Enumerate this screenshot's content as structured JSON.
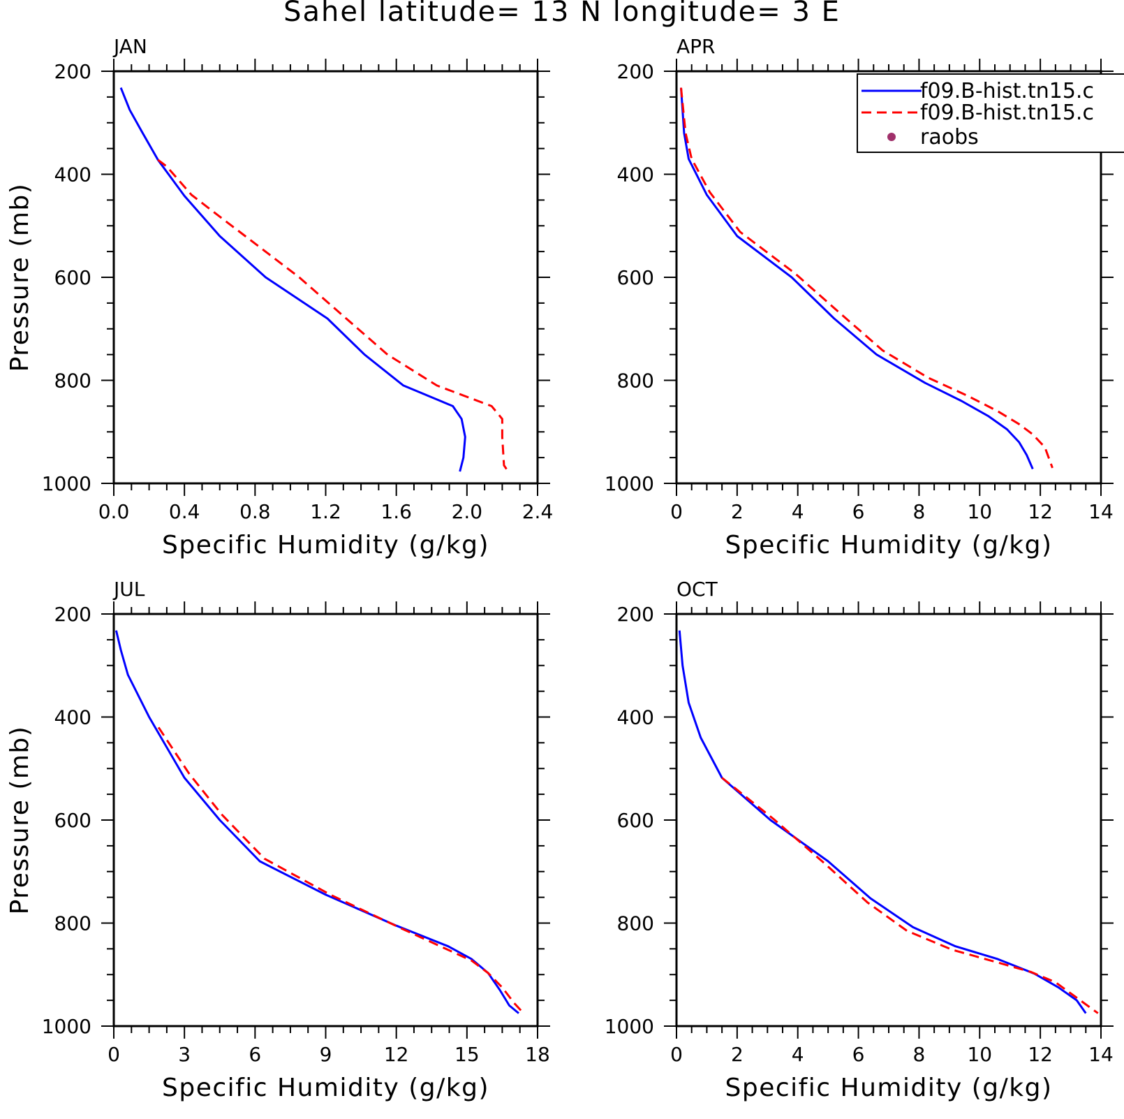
{
  "title": "Sahel  latitude= 13 N longitude= 3 E",
  "colors": {
    "series1": "#0000ff",
    "series2": "#ff0000",
    "raobs": "#a0306a"
  },
  "legend": {
    "placement": "top-right of APR panel",
    "entries": [
      {
        "label": "f09.B-hist.tn15.c",
        "style": "solid",
        "color": "#0000ff"
      },
      {
        "label": "f09.B-hist.tn15.c",
        "style": "dashed",
        "color": "#ff0000"
      },
      {
        "label": "raobs",
        "style": "dot",
        "color": "#a0306a"
      }
    ]
  },
  "chart_data": [
    {
      "type": "line",
      "title": "JAN",
      "xlabel": "Specific Humidity (g/kg)",
      "ylabel": "Pressure (mb)",
      "xlim": [
        0,
        2.4
      ],
      "ylim": [
        1000,
        200
      ],
      "xticks": [
        0,
        0.4,
        0.8,
        1.2,
        1.6,
        2.0,
        2.4
      ],
      "xtick_labels": [
        "0.0",
        "0.4",
        "0.8",
        "1.2",
        "1.6",
        "2.0",
        "2.4"
      ],
      "yticks": [
        200,
        400,
        600,
        800,
        1000
      ],
      "ytick_labels": [
        "200",
        "400",
        "600",
        "800",
        "1000"
      ],
      "series": [
        {
          "style": "solid",
          "color": "#0000ff",
          "x": [
            0.04,
            0.09,
            0.16,
            0.25,
            0.4,
            0.6,
            0.86,
            1.21,
            1.42,
            1.64,
            1.92,
            1.97,
            1.99,
            1.98,
            1.96
          ],
          "y": [
            232,
            275,
            318,
            372,
            442,
            520,
            600,
            680,
            750,
            810,
            850,
            875,
            910,
            950,
            977
          ]
        },
        {
          "style": "dashed",
          "color": "#ff0000",
          "x": [
            0.25,
            0.3,
            0.44,
            0.63,
            0.84,
            1.05,
            1.25,
            1.55,
            1.83,
            2.14,
            2.2,
            2.2,
            2.21,
            2.24
          ],
          "y": [
            372,
            385,
            440,
            490,
            545,
            600,
            660,
            750,
            810,
            850,
            875,
            910,
            965,
            980
          ]
        }
      ]
    },
    {
      "type": "line",
      "title": "APR",
      "xlabel": "Specific Humidity (g/kg)",
      "ylabel": "",
      "xlim": [
        0,
        14
      ],
      "ylim": [
        1000,
        200
      ],
      "xticks": [
        0,
        2,
        4,
        6,
        8,
        10,
        12,
        14
      ],
      "xtick_labels": [
        "0",
        "2",
        "4",
        "6",
        "8",
        "10",
        "12",
        "14"
      ],
      "yticks": [
        200,
        400,
        600,
        800,
        1000
      ],
      "ytick_labels": [
        "200",
        "400",
        "600",
        "800",
        "1000"
      ],
      "series": [
        {
          "style": "solid",
          "color": "#0000ff",
          "x": [
            0.15,
            0.25,
            0.4,
            1.0,
            2.0,
            3.8,
            5.2,
            6.6,
            8.2,
            9.4,
            10.3,
            10.9,
            11.3,
            11.55,
            11.75
          ],
          "y": [
            232,
            320,
            370,
            440,
            520,
            600,
            680,
            750,
            805,
            840,
            870,
            895,
            920,
            945,
            972
          ]
        },
        {
          "style": "dashed",
          "color": "#ff0000",
          "x": [
            0.15,
            0.3,
            0.5,
            1.1,
            2.1,
            3.9,
            5.4,
            6.8,
            8.3,
            9.6,
            10.6,
            11.3,
            11.75,
            12.15,
            12.4
          ],
          "y": [
            232,
            320,
            370,
            435,
            512,
            592,
            670,
            742,
            795,
            830,
            860,
            885,
            905,
            930,
            970
          ]
        }
      ]
    },
    {
      "type": "line",
      "title": "JUL",
      "xlabel": "Specific Humidity (g/kg)",
      "ylabel": "Pressure (mb)",
      "xlim": [
        0,
        18
      ],
      "ylim": [
        1000,
        200
      ],
      "xticks": [
        0,
        3,
        6,
        9,
        12,
        15,
        18
      ],
      "xtick_labels": [
        "0",
        "3",
        "6",
        "9",
        "12",
        "15",
        "18"
      ],
      "yticks": [
        200,
        400,
        600,
        800,
        1000
      ],
      "ytick_labels": [
        "200",
        "400",
        "600",
        "800",
        "1000"
      ],
      "series": [
        {
          "style": "solid",
          "color": "#0000ff",
          "x": [
            0.1,
            0.3,
            0.6,
            1.5,
            3.0,
            4.5,
            6.2,
            9.0,
            12.0,
            14.2,
            15.2,
            15.9,
            16.4,
            16.8,
            17.2
          ],
          "y": [
            232,
            270,
            318,
            400,
            518,
            600,
            680,
            745,
            805,
            845,
            870,
            897,
            930,
            960,
            975
          ]
        },
        {
          "style": "dashed",
          "color": "#ff0000",
          "x": [
            1.9,
            3.2,
            4.6,
            6.4,
            9.2,
            12.2,
            15.2,
            15.9,
            16.5,
            17.0,
            17.4
          ],
          "y": [
            420,
            510,
            590,
            675,
            745,
            810,
            873,
            897,
            925,
            955,
            975
          ]
        }
      ]
    },
    {
      "type": "line",
      "title": "OCT",
      "xlabel": "Specific Humidity (g/kg)",
      "ylabel": "",
      "xlim": [
        0,
        14
      ],
      "ylim": [
        1000,
        200
      ],
      "xticks": [
        0,
        2,
        4,
        6,
        8,
        10,
        12,
        14
      ],
      "xtick_labels": [
        "0",
        "2",
        "4",
        "6",
        "8",
        "10",
        "12",
        "14"
      ],
      "yticks": [
        200,
        400,
        600,
        800,
        1000
      ],
      "ytick_labels": [
        "200",
        "400",
        "600",
        "800",
        "1000"
      ],
      "series": [
        {
          "style": "solid",
          "color": "#0000ff",
          "x": [
            0.1,
            0.2,
            0.4,
            0.8,
            1.5,
            3.1,
            5.0,
            6.4,
            7.8,
            9.2,
            10.6,
            11.8,
            12.6,
            13.2,
            13.5
          ],
          "y": [
            232,
            300,
            372,
            440,
            518,
            600,
            680,
            752,
            808,
            845,
            870,
            898,
            925,
            950,
            975
          ]
        },
        {
          "style": "dashed",
          "color": "#ff0000",
          "x": [
            1.5,
            3.2,
            4.9,
            6.3,
            7.6,
            9.1,
            10.5,
            11.7,
            12.5,
            13.2,
            13.9
          ],
          "y": [
            518,
            598,
            685,
            760,
            815,
            852,
            875,
            895,
            915,
            945,
            975
          ]
        }
      ]
    }
  ]
}
